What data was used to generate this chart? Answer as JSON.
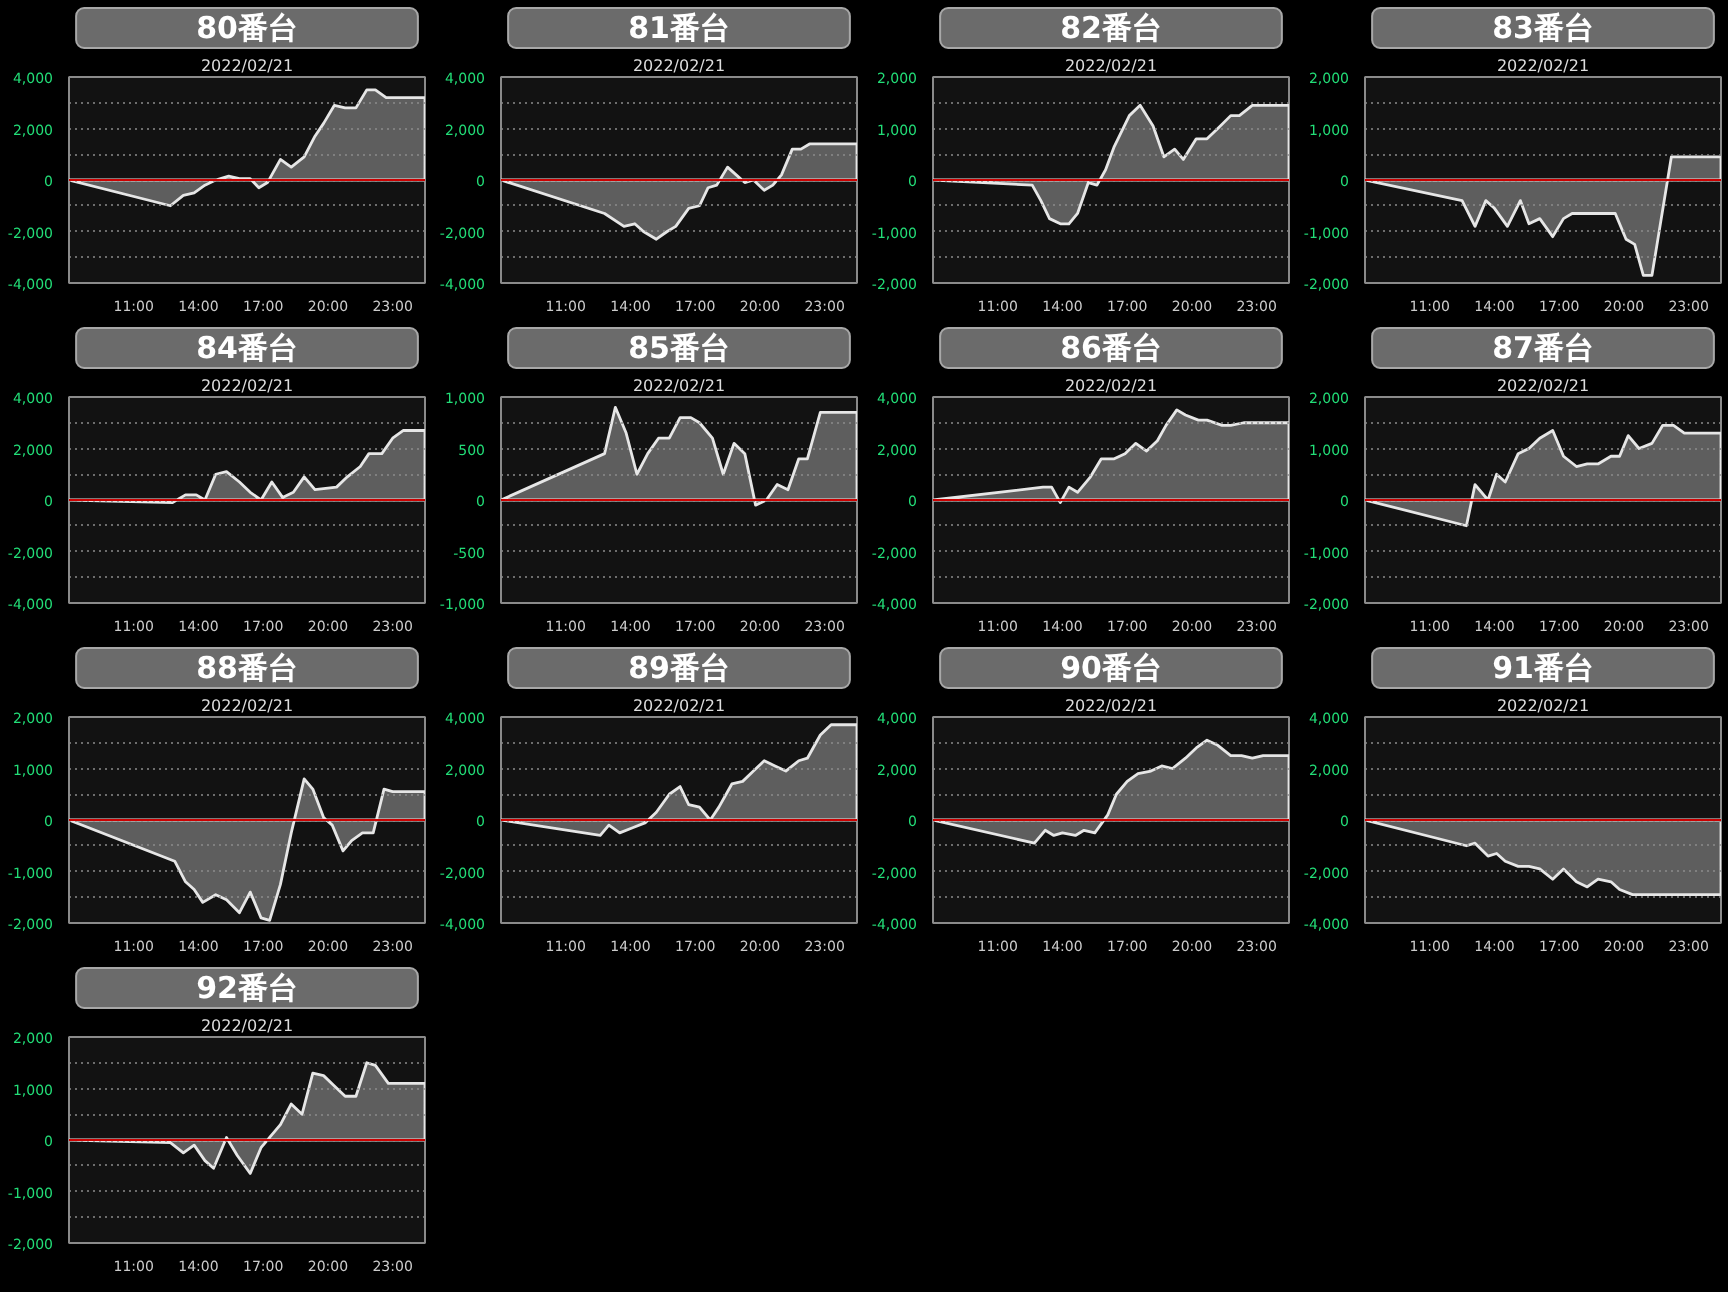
{
  "chart_data": [
    {
      "type": "area",
      "title": "80番台",
      "subtitle": "2022/02/21",
      "color": "#e6e6e6",
      "x": [
        8,
        12.7,
        13.3,
        13.8,
        14.3,
        14.8,
        15.4,
        15.9,
        16.4,
        16.8,
        17.2,
        17.8,
        18.3,
        18.9,
        19.4,
        19.8,
        20.3,
        20.8,
        21.3,
        21.8,
        22.2,
        22.7,
        24.5
      ],
      "values": [
        0,
        -1000,
        -600,
        -500,
        -200,
        0,
        150,
        50,
        50,
        -300,
        -100,
        800,
        500,
        900,
        1700,
        2200,
        2900,
        2800,
        2800,
        3500,
        3500,
        3200,
        3200
      ],
      "xlim": [
        8,
        24.5
      ],
      "xticks": [
        {
          "value": 11,
          "label": "11:00"
        },
        {
          "value": 14,
          "label": "14:00"
        },
        {
          "value": 17,
          "label": "17:00"
        },
        {
          "value": 20,
          "label": "20:00"
        },
        {
          "value": 23,
          "label": "23:00"
        }
      ],
      "ylim": [
        -4000,
        4000
      ],
      "yticks": [
        {
          "value": -4000,
          "label": "-4,000"
        },
        {
          "value": -3000,
          "label": null
        },
        {
          "value": -2000,
          "label": "-2,000"
        },
        {
          "value": -1000,
          "label": null
        },
        0,
        {
          "value": 1000,
          "label": null
        },
        {
          "value": 2000,
          "label": "2,000"
        },
        {
          "value": 3000,
          "label": null
        },
        {
          "value": 4000,
          "label": "4,000"
        }
      ],
      "grid": "y",
      "ref_lines": [
        {
          "axis": "y",
          "value": 0,
          "color": "#cc0000"
        }
      ]
    },
    {
      "type": "area",
      "title": "81番台",
      "subtitle": "2022/02/21",
      "color": "#e6e6e6",
      "x": [
        8,
        12.8,
        13.7,
        14.2,
        14.6,
        15.2,
        15.7,
        16.1,
        16.7,
        17.2,
        17.6,
        18.0,
        18.5,
        18.9,
        19.3,
        19.7,
        20.2,
        20.6,
        21.0,
        21.5,
        21.9,
        22.3,
        24.5
      ],
      "values": [
        0,
        -1300,
        -1800,
        -1700,
        -2000,
        -2300,
        -2000,
        -1800,
        -1100,
        -1000,
        -300,
        -200,
        500,
        200,
        -100,
        0,
        -400,
        -200,
        200,
        1200,
        1200,
        1400,
        1400
      ],
      "xlim": [
        8,
        24.5
      ],
      "xticks": [
        {
          "value": 11,
          "label": "11:00"
        },
        {
          "value": 14,
          "label": "14:00"
        },
        {
          "value": 17,
          "label": "17:00"
        },
        {
          "value": 20,
          "label": "20:00"
        },
        {
          "value": 23,
          "label": "23:00"
        }
      ],
      "ylim": [
        -4000,
        4000
      ],
      "yticks": [
        {
          "value": -4000,
          "label": "-4,000"
        },
        {
          "value": -3000,
          "label": null
        },
        {
          "value": -2000,
          "label": "-2,000"
        },
        {
          "value": -1000,
          "label": null
        },
        0,
        {
          "value": 1000,
          "label": null
        },
        {
          "value": 2000,
          "label": "2,000"
        },
        {
          "value": 3000,
          "label": null
        },
        {
          "value": 4000,
          "label": "4,000"
        }
      ],
      "grid": "y",
      "ref_lines": [
        {
          "axis": "y",
          "value": 0,
          "color": "#cc0000"
        }
      ]
    },
    {
      "type": "area",
      "title": "82番台",
      "subtitle": "2022/02/21",
      "color": "#e6e6e6",
      "x": [
        8,
        12.6,
        13.0,
        13.4,
        13.9,
        14.3,
        14.7,
        15.2,
        15.6,
        16.0,
        16.4,
        17.1,
        17.6,
        18.2,
        18.7,
        19.2,
        19.6,
        20.2,
        20.7,
        21.2,
        21.8,
        22.2,
        22.8,
        24.5
      ],
      "values": [
        0,
        -100,
        -400,
        -750,
        -850,
        -850,
        -650,
        -50,
        -100,
        200,
        650,
        1250,
        1450,
        1050,
        450,
        600,
        400,
        800,
        800,
        1000,
        1250,
        1250,
        1450,
        1450
      ],
      "xlim": [
        8,
        24.5
      ],
      "xticks": [
        {
          "value": 11,
          "label": "11:00"
        },
        {
          "value": 14,
          "label": "14:00"
        },
        {
          "value": 17,
          "label": "17:00"
        },
        {
          "value": 20,
          "label": "20:00"
        },
        {
          "value": 23,
          "label": "23:00"
        }
      ],
      "ylim": [
        -2000,
        2000
      ],
      "yticks": [
        {
          "value": -2000,
          "label": "-2,000"
        },
        {
          "value": -1500,
          "label": null
        },
        {
          "value": -1000,
          "label": "-1,000"
        },
        {
          "value": -500,
          "label": null
        },
        0,
        {
          "value": 500,
          "label": null
        },
        {
          "value": 1000,
          "label": "1,000"
        },
        {
          "value": 1500,
          "label": null
        },
        {
          "value": 2000,
          "label": "2,000"
        }
      ],
      "grid": "y",
      "ref_lines": [
        {
          "axis": "y",
          "value": 0,
          "color": "#cc0000"
        }
      ]
    },
    {
      "type": "area",
      "title": "83番台",
      "subtitle": "2022/02/21",
      "color": "#e6e6e6",
      "x": [
        8,
        12.5,
        13.1,
        13.6,
        14.0,
        14.6,
        15.2,
        15.6,
        16.1,
        16.7,
        17.2,
        17.6,
        19.6,
        20.1,
        20.5,
        20.9,
        21.3,
        22.2,
        24.5
      ],
      "values": [
        0,
        -400,
        -900,
        -400,
        -550,
        -900,
        -400,
        -850,
        -750,
        -1100,
        -750,
        -650,
        -650,
        -1150,
        -1250,
        -1850,
        -1850,
        450,
        450
      ],
      "xlim": [
        8,
        24.5
      ],
      "xticks": [
        {
          "value": 11,
          "label": "11:00"
        },
        {
          "value": 14,
          "label": "14:00"
        },
        {
          "value": 17,
          "label": "17:00"
        },
        {
          "value": 20,
          "label": "20:00"
        },
        {
          "value": 23,
          "label": "23:00"
        }
      ],
      "ylim": [
        -2000,
        2000
      ],
      "yticks": [
        {
          "value": -2000,
          "label": "-2,000"
        },
        {
          "value": -1500,
          "label": null
        },
        {
          "value": -1000,
          "label": "-1,000"
        },
        {
          "value": -500,
          "label": null
        },
        0,
        {
          "value": 500,
          "label": null
        },
        {
          "value": 1000,
          "label": "1,000"
        },
        {
          "value": 1500,
          "label": null
        },
        {
          "value": 2000,
          "label": "2,000"
        }
      ],
      "grid": "y",
      "ref_lines": [
        {
          "axis": "y",
          "value": 0,
          "color": "#cc0000"
        }
      ]
    },
    {
      "type": "area",
      "title": "84番台",
      "subtitle": "2022/02/21",
      "color": "#e6e6e6",
      "x": [
        8,
        12.8,
        13.4,
        13.9,
        14.3,
        14.8,
        15.3,
        15.9,
        16.4,
        16.9,
        17.4,
        17.9,
        18.4,
        18.9,
        19.4,
        20.4,
        20.9,
        21.5,
        21.9,
        22.5,
        23.0,
        23.5,
        24.5
      ],
      "values": [
        0,
        -100,
        200,
        200,
        0,
        1000,
        1100,
        700,
        300,
        0,
        700,
        100,
        300,
        900,
        400,
        500,
        900,
        1300,
        1800,
        1800,
        2400,
        2700,
        2700
      ],
      "xlim": [
        8,
        24.5
      ],
      "xticks": [
        {
          "value": 11,
          "label": "11:00"
        },
        {
          "value": 14,
          "label": "14:00"
        },
        {
          "value": 17,
          "label": "17:00"
        },
        {
          "value": 20,
          "label": "20:00"
        },
        {
          "value": 23,
          "label": "23:00"
        }
      ],
      "ylim": [
        -4000,
        4000
      ],
      "yticks": [
        {
          "value": -4000,
          "label": "-4,000"
        },
        {
          "value": -3000,
          "label": null
        },
        {
          "value": -2000,
          "label": "-2,000"
        },
        {
          "value": -1000,
          "label": null
        },
        0,
        {
          "value": 1000,
          "label": null
        },
        {
          "value": 2000,
          "label": "2,000"
        },
        {
          "value": 3000,
          "label": null
        },
        {
          "value": 4000,
          "label": "4,000"
        }
      ],
      "grid": "y",
      "ref_lines": [
        {
          "axis": "y",
          "value": 0,
          "color": "#cc0000"
        }
      ]
    },
    {
      "type": "area",
      "title": "85番台",
      "subtitle": "2022/02/21",
      "color": "#e6e6e6",
      "x": [
        8,
        12.8,
        13.3,
        13.8,
        14.3,
        14.8,
        15.3,
        15.8,
        16.3,
        16.8,
        17.2,
        17.8,
        18.3,
        18.8,
        19.3,
        19.8,
        20.3,
        20.8,
        21.3,
        21.8,
        22.2,
        22.8,
        24.5
      ],
      "values": [
        0,
        450,
        900,
        650,
        250,
        450,
        600,
        600,
        800,
        800,
        750,
        600,
        250,
        550,
        450,
        -50,
        0,
        150,
        100,
        400,
        400,
        850,
        850
      ],
      "xlim": [
        8,
        24.5
      ],
      "xticks": [
        {
          "value": 11,
          "label": "11:00"
        },
        {
          "value": 14,
          "label": "14:00"
        },
        {
          "value": 17,
          "label": "17:00"
        },
        {
          "value": 20,
          "label": "20:00"
        },
        {
          "value": 23,
          "label": "23:00"
        }
      ],
      "ylim": [
        -1000,
        1000
      ],
      "yticks": [
        {
          "value": -1000,
          "label": "-1,000"
        },
        {
          "value": -750,
          "label": null
        },
        -500,
        {
          "value": -250,
          "label": null
        },
        0,
        {
          "value": 250,
          "label": null
        },
        500,
        {
          "value": 750,
          "label": null
        },
        {
          "value": 1000,
          "label": "1,000"
        }
      ],
      "grid": "y",
      "ref_lines": [
        {
          "axis": "y",
          "value": 0,
          "color": "#cc0000"
        }
      ]
    },
    {
      "type": "area",
      "title": "86番台",
      "subtitle": "2022/02/21",
      "color": "#e6e6e6",
      "x": [
        8,
        13.1,
        13.5,
        13.9,
        14.3,
        14.7,
        15.3,
        15.8,
        16.4,
        16.9,
        17.4,
        17.9,
        18.4,
        18.8,
        19.3,
        19.7,
        20.3,
        20.7,
        21.4,
        21.8,
        22.4,
        23.1,
        24.5
      ],
      "values": [
        0,
        500,
        500,
        -100,
        500,
        300,
        900,
        1600,
        1600,
        1800,
        2200,
        1900,
        2300,
        2900,
        3500,
        3300,
        3100,
        3100,
        2900,
        2900,
        3000,
        3000,
        3000
      ],
      "xlim": [
        8,
        24.5
      ],
      "xticks": [
        {
          "value": 11,
          "label": "11:00"
        },
        {
          "value": 14,
          "label": "14:00"
        },
        {
          "value": 17,
          "label": "17:00"
        },
        {
          "value": 20,
          "label": "20:00"
        },
        {
          "value": 23,
          "label": "23:00"
        }
      ],
      "ylim": [
        -4000,
        4000
      ],
      "yticks": [
        {
          "value": -4000,
          "label": "-4,000"
        },
        {
          "value": -3000,
          "label": null
        },
        {
          "value": -2000,
          "label": "-2,000"
        },
        {
          "value": -1000,
          "label": null
        },
        0,
        {
          "value": 1000,
          "label": null
        },
        {
          "value": 2000,
          "label": "2,000"
        },
        {
          "value": 3000,
          "label": null
        },
        {
          "value": 4000,
          "label": "4,000"
        }
      ],
      "grid": "y",
      "ref_lines": [
        {
          "axis": "y",
          "value": 0,
          "color": "#cc0000"
        }
      ]
    },
    {
      "type": "area",
      "title": "87番台",
      "subtitle": "2022/02/21",
      "color": "#e6e6e6",
      "x": [
        8,
        12.7,
        13.1,
        13.7,
        14.1,
        14.5,
        15.1,
        15.6,
        16.1,
        16.7,
        17.2,
        17.8,
        18.3,
        18.8,
        19.4,
        19.8,
        20.2,
        20.7,
        21.3,
        21.8,
        22.3,
        22.8,
        24.5
      ],
      "values": [
        0,
        -500,
        300,
        0,
        500,
        350,
        900,
        1000,
        1200,
        1350,
        850,
        650,
        700,
        700,
        850,
        850,
        1250,
        1000,
        1100,
        1450,
        1450,
        1300,
        1300
      ],
      "xlim": [
        8,
        24.5
      ],
      "xticks": [
        {
          "value": 11,
          "label": "11:00"
        },
        {
          "value": 14,
          "label": "14:00"
        },
        {
          "value": 17,
          "label": "17:00"
        },
        {
          "value": 20,
          "label": "20:00"
        },
        {
          "value": 23,
          "label": "23:00"
        }
      ],
      "ylim": [
        -2000,
        2000
      ],
      "yticks": [
        {
          "value": -2000,
          "label": "-2,000"
        },
        {
          "value": -1500,
          "label": null
        },
        {
          "value": -1000,
          "label": "-1,000"
        },
        {
          "value": -500,
          "label": null
        },
        0,
        {
          "value": 500,
          "label": null
        },
        {
          "value": 1000,
          "label": "1,000"
        },
        {
          "value": 1500,
          "label": null
        },
        {
          "value": 2000,
          "label": "2,000"
        }
      ],
      "grid": "y",
      "ref_lines": [
        {
          "axis": "y",
          "value": 0,
          "color": "#cc0000"
        }
      ]
    },
    {
      "type": "area",
      "title": "88番台",
      "subtitle": "2022/02/21",
      "color": "#e6e6e6",
      "x": [
        8,
        12.9,
        13.4,
        13.8,
        14.2,
        14.8,
        15.3,
        15.9,
        16.4,
        16.9,
        17.3,
        17.8,
        18.3,
        18.9,
        19.3,
        19.8,
        20.2,
        20.7,
        21.1,
        21.6,
        22.1,
        22.6,
        23.0,
        24.5
      ],
      "values": [
        0,
        -800,
        -1200,
        -1350,
        -1600,
        -1450,
        -1550,
        -1800,
        -1400,
        -1900,
        -1950,
        -1250,
        -250,
        800,
        600,
        50,
        -100,
        -600,
        -400,
        -250,
        -250,
        600,
        550,
        550
      ],
      "xlim": [
        8,
        24.5
      ],
      "xticks": [
        {
          "value": 11,
          "label": "11:00"
        },
        {
          "value": 14,
          "label": "14:00"
        },
        {
          "value": 17,
          "label": "17:00"
        },
        {
          "value": 20,
          "label": "20:00"
        },
        {
          "value": 23,
          "label": "23:00"
        }
      ],
      "ylim": [
        -2000,
        2000
      ],
      "yticks": [
        {
          "value": -2000,
          "label": "-2,000"
        },
        {
          "value": -1500,
          "label": null
        },
        {
          "value": -1000,
          "label": "-1,000"
        },
        {
          "value": -500,
          "label": null
        },
        0,
        {
          "value": 500,
          "label": null
        },
        {
          "value": 1000,
          "label": "1,000"
        },
        {
          "value": 1500,
          "label": null
        },
        {
          "value": 2000,
          "label": "2,000"
        }
      ],
      "grid": "y",
      "ref_lines": [
        {
          "axis": "y",
          "value": 0,
          "color": "#cc0000"
        }
      ]
    },
    {
      "type": "area",
      "title": "89番台",
      "subtitle": "2022/02/21",
      "color": "#e6e6e6",
      "x": [
        8,
        12.6,
        13.0,
        13.5,
        14.1,
        14.7,
        15.2,
        15.8,
        16.3,
        16.7,
        17.2,
        17.7,
        18.1,
        18.7,
        19.2,
        19.7,
        20.2,
        20.7,
        21.2,
        21.8,
        22.2,
        22.8,
        23.3,
        24.5
      ],
      "values": [
        0,
        -600,
        -200,
        -500,
        -300,
        -100,
        300,
        1000,
        1300,
        600,
        500,
        0,
        500,
        1400,
        1500,
        1900,
        2300,
        2100,
        1900,
        2300,
        2400,
        3300,
        3700,
        3700
      ],
      "xlim": [
        8,
        24.5
      ],
      "xticks": [
        {
          "value": 11,
          "label": "11:00"
        },
        {
          "value": 14,
          "label": "14:00"
        },
        {
          "value": 17,
          "label": "17:00"
        },
        {
          "value": 20,
          "label": "20:00"
        },
        {
          "value": 23,
          "label": "23:00"
        }
      ],
      "ylim": [
        -4000,
        4000
      ],
      "yticks": [
        {
          "value": -4000,
          "label": "-4,000"
        },
        {
          "value": -3000,
          "label": null
        },
        {
          "value": -2000,
          "label": "-2,000"
        },
        {
          "value": -1000,
          "label": null
        },
        0,
        {
          "value": 1000,
          "label": null
        },
        {
          "value": 2000,
          "label": "2,000"
        },
        {
          "value": 3000,
          "label": null
        },
        {
          "value": 4000,
          "label": "4,000"
        }
      ],
      "grid": "y",
      "ref_lines": [
        {
          "axis": "y",
          "value": 0,
          "color": "#cc0000"
        }
      ]
    },
    {
      "type": "area",
      "title": "90番台",
      "subtitle": "2022/02/21",
      "color": "#e6e6e6",
      "x": [
        8,
        12.7,
        13.2,
        13.6,
        14.0,
        14.6,
        15.0,
        15.5,
        16.1,
        16.5,
        17.0,
        17.5,
        18.1,
        18.6,
        19.1,
        19.7,
        20.2,
        20.7,
        21.2,
        21.8,
        22.3,
        22.8,
        23.3,
        24.5
      ],
      "values": [
        0,
        -900,
        -400,
        -600,
        -500,
        -600,
        -400,
        -500,
        200,
        1000,
        1500,
        1800,
        1900,
        2100,
        2000,
        2400,
        2800,
        3100,
        2900,
        2500,
        2500,
        2400,
        2500,
        2500
      ],
      "xlim": [
        8,
        24.5
      ],
      "xticks": [
        {
          "value": 11,
          "label": "11:00"
        },
        {
          "value": 14,
          "label": "14:00"
        },
        {
          "value": 17,
          "label": "17:00"
        },
        {
          "value": 20,
          "label": "20:00"
        },
        {
          "value": 23,
          "label": "23:00"
        }
      ],
      "ylim": [
        -4000,
        4000
      ],
      "yticks": [
        {
          "value": -4000,
          "label": "-4,000"
        },
        {
          "value": -3000,
          "label": null
        },
        {
          "value": -2000,
          "label": "-2,000"
        },
        {
          "value": -1000,
          "label": null
        },
        0,
        {
          "value": 1000,
          "label": null
        },
        {
          "value": 2000,
          "label": "2,000"
        },
        {
          "value": 3000,
          "label": null
        },
        {
          "value": 4000,
          "label": "4,000"
        }
      ],
      "grid": "y",
      "ref_lines": [
        {
          "axis": "y",
          "value": 0,
          "color": "#cc0000"
        }
      ]
    },
    {
      "type": "area",
      "title": "91番台",
      "subtitle": "2022/02/21",
      "color": "#e6e6e6",
      "x": [
        8,
        12.7,
        13.1,
        13.7,
        14.1,
        14.5,
        15.1,
        15.6,
        16.1,
        16.7,
        17.2,
        17.8,
        18.3,
        18.8,
        19.4,
        19.8,
        20.4,
        20.9,
        24.5
      ],
      "values": [
        0,
        -1000,
        -900,
        -1400,
        -1300,
        -1600,
        -1800,
        -1800,
        -1900,
        -2300,
        -1900,
        -2400,
        -2600,
        -2300,
        -2400,
        -2700,
        -2900,
        -2900,
        -2900
      ],
      "xlim": [
        8,
        24.5
      ],
      "xticks": [
        {
          "value": 11,
          "label": "11:00"
        },
        {
          "value": 14,
          "label": "14:00"
        },
        {
          "value": 17,
          "label": "17:00"
        },
        {
          "value": 20,
          "label": "20:00"
        },
        {
          "value": 23,
          "label": "23:00"
        }
      ],
      "ylim": [
        -4000,
        4000
      ],
      "yticks": [
        {
          "value": -4000,
          "label": "-4,000"
        },
        {
          "value": -3000,
          "label": null
        },
        {
          "value": -2000,
          "label": "-2,000"
        },
        {
          "value": -1000,
          "label": null
        },
        0,
        {
          "value": 1000,
          "label": null
        },
        {
          "value": 2000,
          "label": "2,000"
        },
        {
          "value": 3000,
          "label": null
        },
        {
          "value": 4000,
          "label": "4,000"
        }
      ],
      "grid": "y",
      "ref_lines": [
        {
          "axis": "y",
          "value": 0,
          "color": "#cc0000"
        }
      ]
    },
    {
      "type": "area",
      "title": "92番台",
      "subtitle": "2022/02/21",
      "color": "#e6e6e6",
      "x": [
        8,
        12.7,
        13.3,
        13.8,
        14.3,
        14.7,
        15.3,
        15.8,
        16.4,
        16.9,
        17.3,
        17.8,
        18.3,
        18.8,
        19.3,
        19.8,
        20.3,
        20.8,
        21.3,
        21.8,
        22.2,
        22.8,
        24.5
      ],
      "values": [
        0,
        -50,
        -250,
        -100,
        -400,
        -550,
        50,
        -300,
        -650,
        -150,
        50,
        300,
        700,
        500,
        1300,
        1250,
        1050,
        850,
        850,
        1500,
        1450,
        1100,
        1100
      ],
      "xlim": [
        8,
        24.5
      ],
      "xticks": [
        {
          "value": 11,
          "label": "11:00"
        },
        {
          "value": 14,
          "label": "14:00"
        },
        {
          "value": 17,
          "label": "17:00"
        },
        {
          "value": 20,
          "label": "20:00"
        },
        {
          "value": 23,
          "label": "23:00"
        }
      ],
      "ylim": [
        -2000,
        2000
      ],
      "yticks": [
        {
          "value": -2000,
          "label": "-2,000"
        },
        {
          "value": -1500,
          "label": null
        },
        {
          "value": -1000,
          "label": "-1,000"
        },
        {
          "value": -500,
          "label": null
        },
        0,
        {
          "value": 500,
          "label": null
        },
        {
          "value": 1000,
          "label": "1,000"
        },
        {
          "value": 1500,
          "label": null
        },
        {
          "value": 2000,
          "label": "2,000"
        }
      ],
      "grid": "y",
      "ref_lines": [
        {
          "axis": "y",
          "value": 0,
          "color": "#cc0000"
        }
      ]
    }
  ]
}
